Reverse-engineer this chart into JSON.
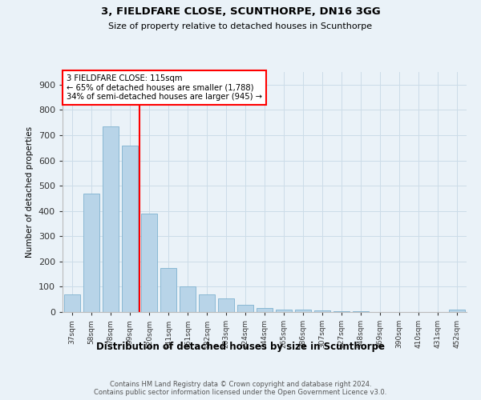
{
  "title1": "3, FIELDFARE CLOSE, SCUNTHORPE, DN16 3GG",
  "title2": "Size of property relative to detached houses in Scunthorpe",
  "xlabel": "Distribution of detached houses by size in Scunthorpe",
  "ylabel": "Number of detached properties",
  "footnote": "Contains HM Land Registry data © Crown copyright and database right 2024.\nContains public sector information licensed under the Open Government Licence v3.0.",
  "bins": [
    "37sqm",
    "58sqm",
    "78sqm",
    "99sqm",
    "120sqm",
    "141sqm",
    "161sqm",
    "182sqm",
    "203sqm",
    "224sqm",
    "244sqm",
    "265sqm",
    "286sqm",
    "307sqm",
    "327sqm",
    "348sqm",
    "369sqm",
    "390sqm",
    "410sqm",
    "431sqm",
    "452sqm"
  ],
  "values": [
    70,
    470,
    735,
    660,
    390,
    175,
    100,
    70,
    55,
    30,
    15,
    10,
    8,
    5,
    3,
    2,
    1,
    0,
    0,
    0,
    8
  ],
  "bar_color": "#b8d4e8",
  "bar_edge_color": "#89b8d4",
  "marker_bin_index": 4,
  "marker_label": "3 FIELDFARE CLOSE: 115sqm",
  "annotation_line1": "← 65% of detached houses are smaller (1,788)",
  "annotation_line2": "34% of semi-detached houses are larger (945) →",
  "marker_color": "red",
  "grid_color": "#ccdce8",
  "ylim": [
    0,
    950
  ],
  "yticks": [
    0,
    100,
    200,
    300,
    400,
    500,
    600,
    700,
    800,
    900
  ],
  "bg_color": "#eaf2f8"
}
